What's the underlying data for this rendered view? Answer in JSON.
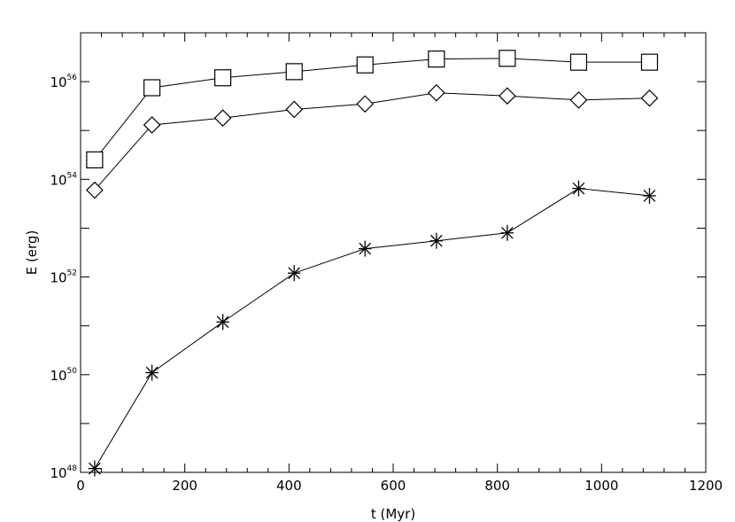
{
  "chart_data": {
    "type": "line",
    "title": "",
    "xlabel": "t (Myr)",
    "ylabel": "E (erg)",
    "xlim": [
      0,
      1200
    ],
    "ylim": [
      1e+48,
      1e+57
    ],
    "yscale": "log",
    "grid": false,
    "x_ticks": [
      "0",
      "200",
      "400",
      "600",
      "800",
      "1000",
      "1200"
    ],
    "y_ticks": [
      {
        "base": "10",
        "exp": "48",
        "value": 1e+48
      },
      {
        "base": "10",
        "exp": "50",
        "value": 1e+50
      },
      {
        "base": "10",
        "exp": "52",
        "value": 1e+52
      },
      {
        "base": "10",
        "exp": "54",
        "value": 1e+54
      },
      {
        "base": "10",
        "exp": "56",
        "value": 1e+56
      }
    ],
    "x": [
      27,
      137,
      273,
      410,
      546,
      683,
      819,
      956,
      1092
    ],
    "series": [
      {
        "marker": "square",
        "values": [
          2.5e+54,
          7.5e+55,
          1.2e+56,
          1.6e+56,
          2.2e+56,
          2.9e+56,
          3e+56,
          2.5e+56,
          2.5e+56
        ]
      },
      {
        "marker": "diamond",
        "values": [
          6e+53,
          1.3e+55,
          1.8e+55,
          2.7e+55,
          3.5e+55,
          5.9e+55,
          5.1e+55,
          4.2e+55,
          4.6e+55
        ]
      },
      {
        "marker": "asterisk",
        "values": [
          1.2e+48,
          1.1e+50,
          1.2e+51,
          1.2e+52,
          3.8e+52,
          5.5e+52,
          8e+52,
          6.5e+53,
          4.6e+53
        ]
      }
    ]
  }
}
